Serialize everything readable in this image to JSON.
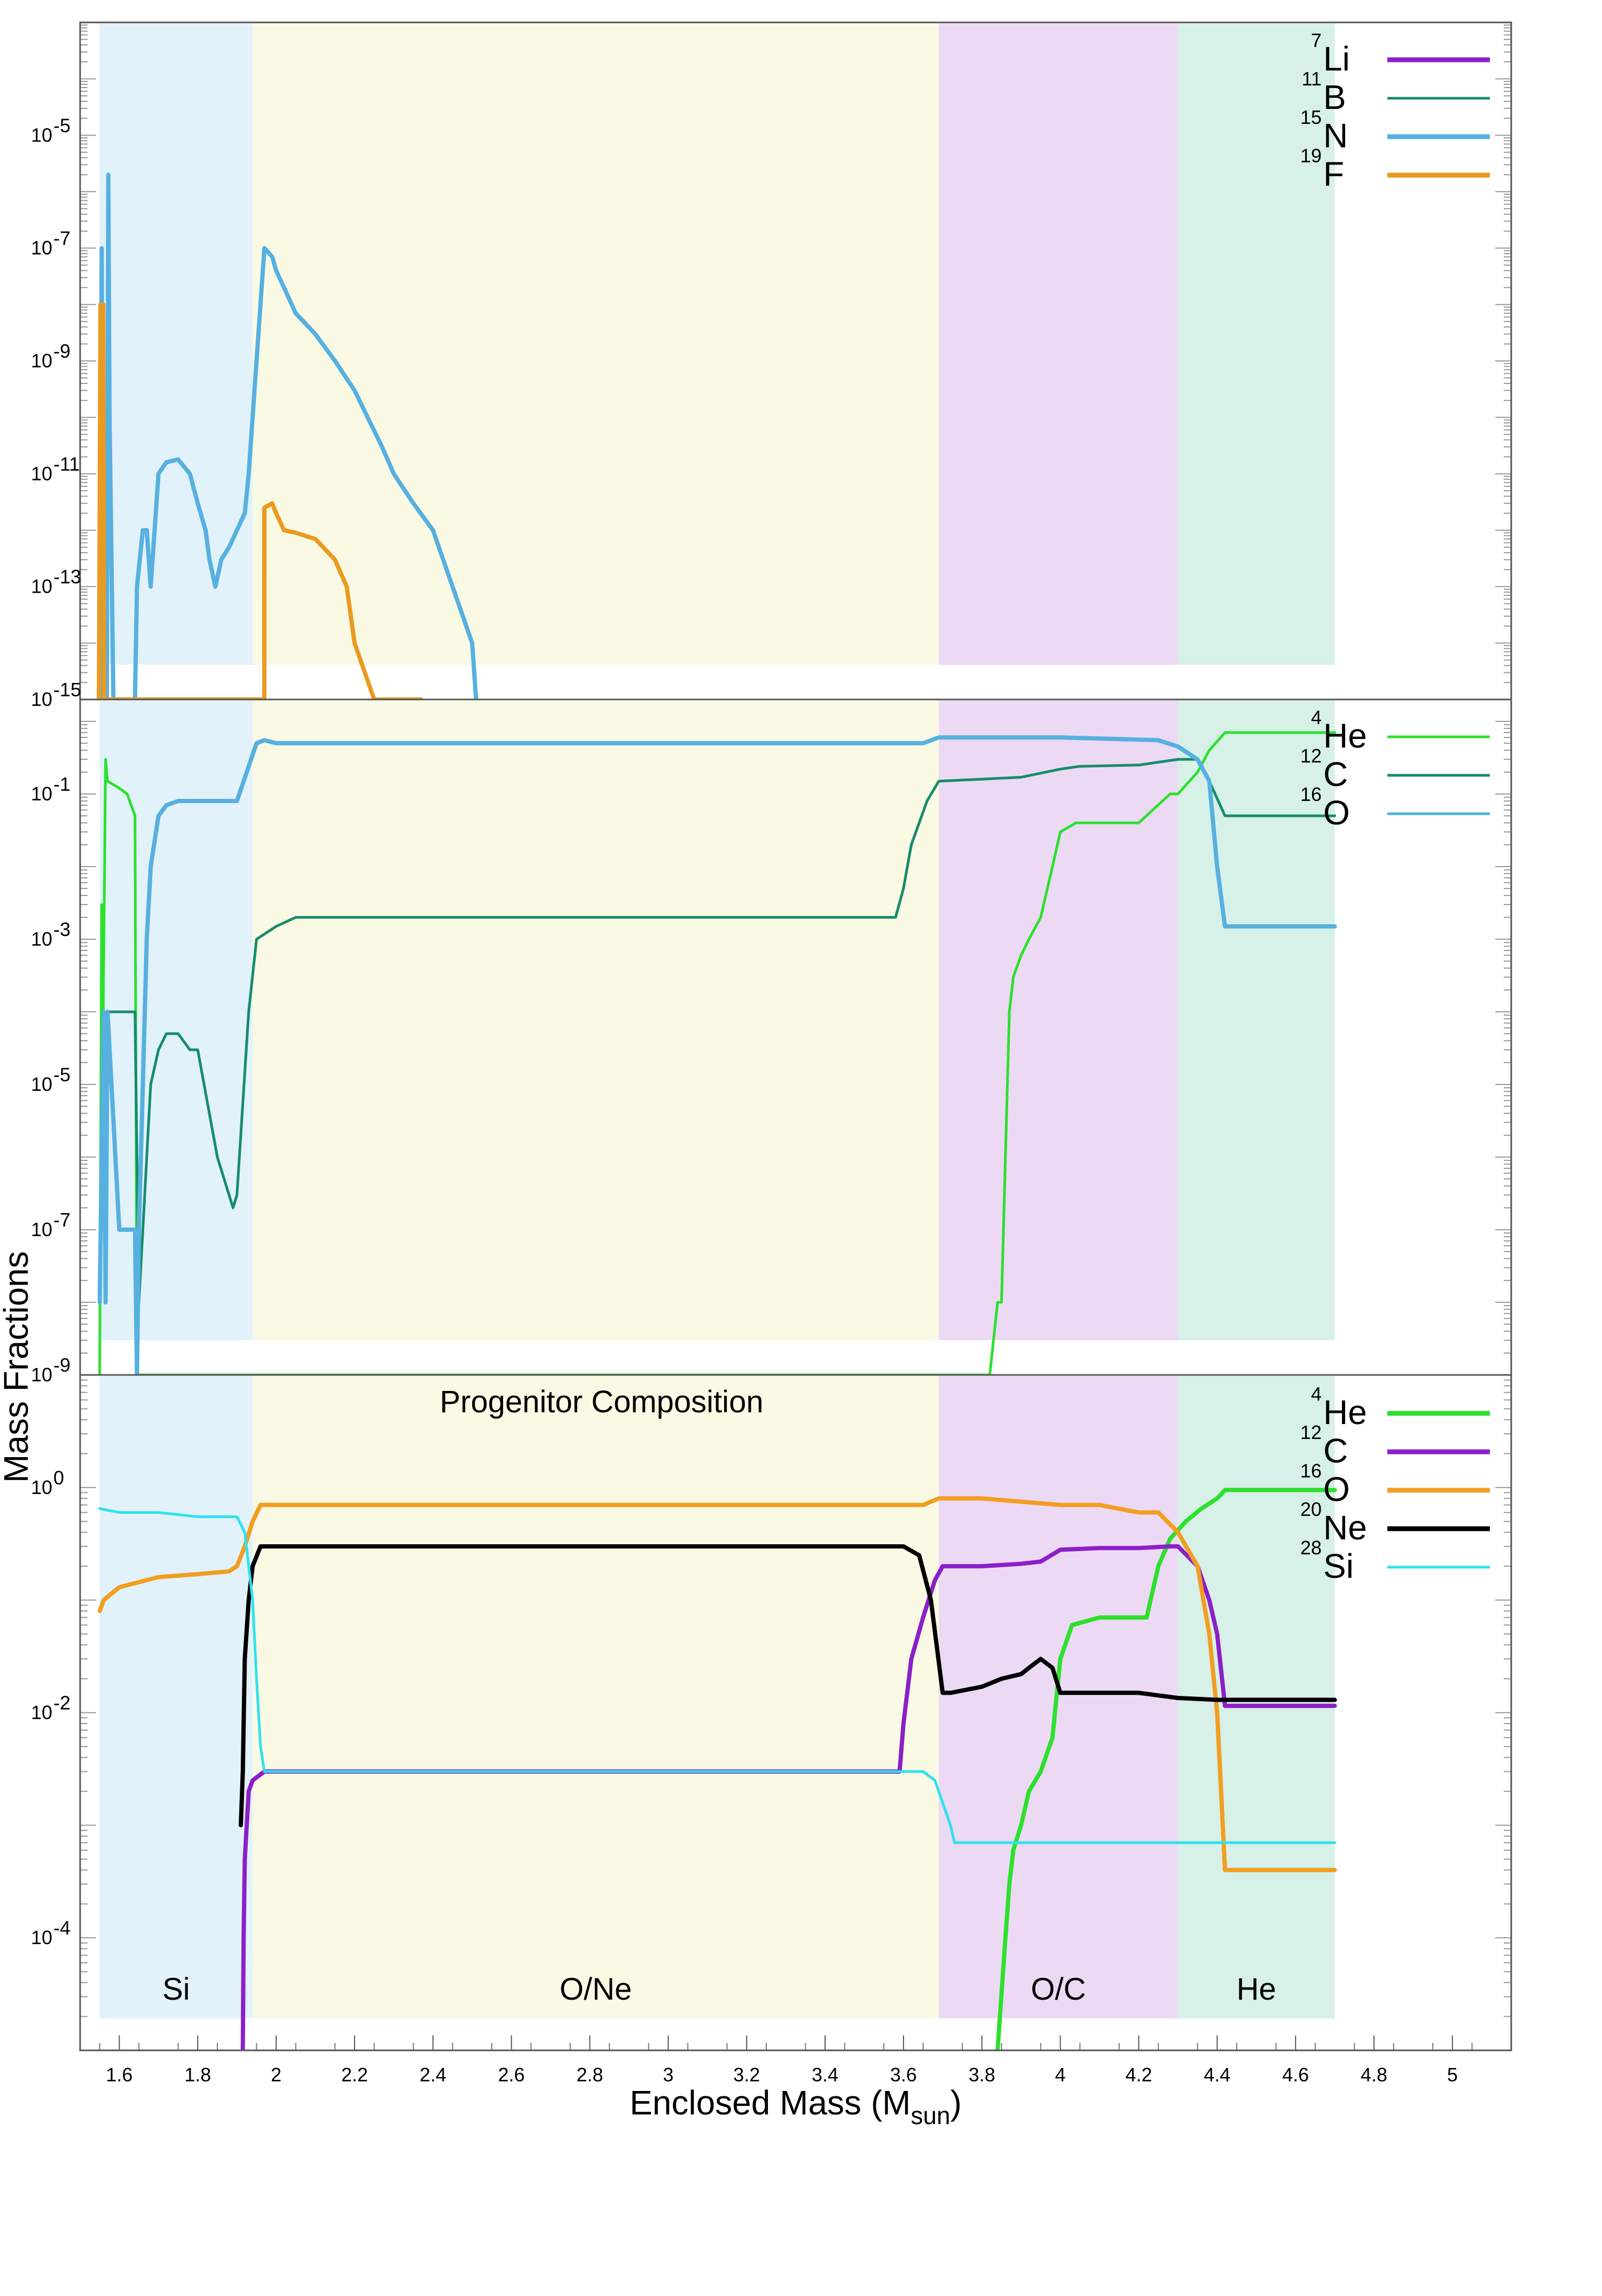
{
  "colors": {
    "region_si": "#e1f2fa",
    "region_one": "#faf9e4",
    "region_oc": "#ecdaf4",
    "region_he": "#d7f0e8",
    "frame": "#555555"
  },
  "chart_data": {
    "type": "line",
    "y_axis_label": "Mass Fractions",
    "x_axis": {
      "label_main": "Enclosed Mass (M",
      "label_sub": "sun",
      "label_close": ")",
      "range": [
        1.5,
        5.15
      ],
      "ticks": [
        1.6,
        1.8,
        2,
        2.2,
        2.4,
        2.6,
        2.8,
        3,
        3.2,
        3.4,
        3.6,
        3.8,
        4,
        4.2,
        4.4,
        4.6,
        4.8,
        5
      ],
      "tick_labels": [
        "1.6",
        "1.8",
        "2",
        "2.2",
        "2.4",
        "2.6",
        "2.8",
        "3",
        "3.2",
        "3.4",
        "3.6",
        "3.8",
        "4",
        "4.2",
        "4.4",
        "4.6",
        "4.8",
        "5"
      ]
    },
    "regions": [
      {
        "label": "Si",
        "x": [
          1.55,
          1.94
        ],
        "color": "#e1f2fa"
      },
      {
        "label": "O/Ne",
        "x": [
          1.94,
          3.69
        ],
        "color": "#faf9e4"
      },
      {
        "label": "O/C",
        "x": [
          3.69,
          4.3
        ],
        "color": "#ecdaf4"
      },
      {
        "label": "He",
        "x": [
          4.3,
          4.7
        ],
        "color": "#d7f0e8"
      }
    ],
    "panels": [
      {
        "scale": "log",
        "ylim": [
          1e-15,
          0.001
        ],
        "ytick_exponents": [
          -15,
          -13,
          -11,
          -9,
          -7,
          -5
        ],
        "series": [
          {
            "mass": "7",
            "element": "Li",
            "color": "#8c1fc8",
            "x": [
              1.555,
              1.556,
              1.557,
              1.559,
              1.56
            ],
            "y": [
              1e-15,
              1e-11,
              3e-10,
              1e-11,
              1e-15
            ]
          },
          {
            "mass": "11",
            "element": "B",
            "color": "#168c6c",
            "x": [
              1.555,
              1.558,
              1.56
            ],
            "y": [
              1e-15,
              1e-14,
              1e-15
            ]
          },
          {
            "mass": "15",
            "element": "N",
            "color": "#56b0e0",
            "x": [
              1.55,
              1.555,
              1.558,
              1.563,
              1.568,
              1.572,
              1.575,
              1.585,
              1.6,
              1.62,
              1.64,
              1.645,
              1.66,
              1.67,
              1.68,
              1.69,
              1.7,
              1.72,
              1.75,
              1.78,
              1.8,
              1.82,
              1.83,
              1.845,
              1.86,
              1.88,
              1.9,
              1.92,
              1.93,
              1.97,
              1.99,
              2.0,
              2.02,
              2.05,
              2.1,
              2.15,
              2.2,
              2.27,
              2.3,
              2.35,
              2.4,
              2.45,
              2.5,
              2.51
            ],
            "y": [
              1e-15,
              1e-07,
              1e-11,
              1e-15,
              1e-15,
              2e-06,
              1e-10,
              1e-15,
              1e-15,
              1e-15,
              1e-15,
              1e-13,
              1e-12,
              1e-12,
              1e-13,
              1e-12,
              1e-11,
              1.6e-11,
              1.8e-11,
              1e-11,
              3e-12,
              1e-12,
              3e-13,
              1e-13,
              3e-13,
              5e-13,
              1e-12,
              2e-12,
              1e-11,
              1e-07,
              7e-08,
              4e-08,
              2e-08,
              7e-09,
              3e-09,
              1e-09,
              3e-10,
              3e-11,
              1e-11,
              3e-12,
              1e-12,
              1e-13,
              1e-14,
              1e-15
            ]
          },
          {
            "mass": "19",
            "element": "F",
            "color": "#ea9a20",
            "x": [
              1.548,
              1.552,
              1.556,
              1.559,
              1.561,
              1.9699,
              1.97,
              1.99,
              2.0,
              2.02,
              2.05,
              2.1,
              2.15,
              2.18,
              2.2,
              2.25,
              2.3,
              2.35,
              2.37
            ],
            "y": [
              1e-15,
              1e-08,
              1e-11,
              1e-08,
              1e-15,
              1e-15,
              2.5e-12,
              3e-12,
              2e-12,
              1e-12,
              9e-13,
              7e-13,
              3e-13,
              1e-13,
              1e-14,
              1e-15,
              1e-15,
              1e-15,
              1e-15
            ]
          }
        ]
      },
      {
        "scale": "log",
        "ylim": [
          1e-09,
          2
        ],
        "ytick_exponents": [
          -9,
          -7,
          -5,
          -3,
          -1
        ],
        "series": [
          {
            "mass": "4",
            "element": "He",
            "color": "#2ee02e",
            "x": [
              1.55,
              1.555,
              1.557,
              1.559,
              1.565,
              1.57,
              1.6,
              1.62,
              1.64,
              1.645,
              1.65,
              3.82,
              3.84,
              3.85,
              3.86,
              3.87,
              3.88,
              3.9,
              3.92,
              3.95,
              3.98,
              4.0,
              4.04,
              4.1,
              4.2,
              4.28,
              4.3,
              4.35,
              4.38,
              4.42,
              4.5,
              4.6,
              4.7
            ],
            "y": [
              1e-09,
              0.003,
              1e-07,
              0.0001,
              0.3,
              0.15,
              0.12,
              0.1,
              0.05,
              1e-09,
              1e-09,
              1e-09,
              1e-08,
              1e-08,
              1e-06,
              0.0001,
              0.0003,
              0.0006,
              0.001,
              0.002,
              0.01,
              0.03,
              0.04,
              0.04,
              0.04,
              0.1,
              0.1,
              0.2,
              0.4,
              0.7,
              0.7,
              0.7,
              0.7
            ]
          },
          {
            "mass": "12",
            "element": "C",
            "color": "#168c6c",
            "x": [
              1.55,
              1.555,
              1.56,
              1.565,
              1.57,
              1.6,
              1.64,
              1.65,
              1.66,
              1.67,
              1.68,
              1.7,
              1.72,
              1.75,
              1.78,
              1.8,
              1.85,
              1.88,
              1.89,
              1.9,
              1.93,
              1.95,
              2.0,
              2.05,
              2.2,
              2.5,
              3.0,
              3.5,
              3.58,
              3.6,
              3.62,
              3.64,
              3.66,
              3.69,
              3.8,
              3.9,
              4.0,
              4.05,
              4.2,
              4.3,
              4.35,
              4.38,
              4.42,
              4.5,
              4.6,
              4.7
            ],
            "y": [
              1e-08,
              3e-06,
              0.0001,
              1e-08,
              0.0001,
              0.0001,
              0.0001,
              1e-08,
              1e-07,
              1e-06,
              1e-05,
              3e-05,
              5e-05,
              5e-05,
              3e-05,
              3e-05,
              1e-06,
              3e-07,
              2e-07,
              3e-07,
              0.0001,
              0.001,
              0.0015,
              0.002,
              0.002,
              0.002,
              0.002,
              0.002,
              0.002,
              0.005,
              0.02,
              0.04,
              0.08,
              0.15,
              0.16,
              0.17,
              0.22,
              0.24,
              0.25,
              0.3,
              0.3,
              0.15,
              0.05,
              0.05,
              0.05,
              0.05
            ]
          },
          {
            "mass": "16",
            "element": "O",
            "color": "#56b0e0",
            "x": [
              1.55,
              1.555,
              1.56,
              1.565,
              1.57,
              1.6,
              1.64,
              1.645,
              1.65,
              1.66,
              1.67,
              1.68,
              1.7,
              1.72,
              1.75,
              1.8,
              1.85,
              1.9,
              1.95,
              1.97,
              2.0,
              2.5,
              3.0,
              3.5,
              3.65,
              3.69,
              3.8,
              4.0,
              4.25,
              4.3,
              4.35,
              4.38,
              4.4,
              4.42,
              4.5,
              4.6,
              4.7
            ],
            "y": [
              1e-08,
              1e-06,
              0.0001,
              1e-08,
              0.0001,
              1e-07,
              1e-07,
              1e-09,
              1e-07,
              1e-05,
              0.001,
              0.01,
              0.05,
              0.07,
              0.08,
              0.08,
              0.08,
              0.08,
              0.5,
              0.55,
              0.5,
              0.5,
              0.5,
              0.5,
              0.5,
              0.6,
              0.6,
              0.6,
              0.55,
              0.45,
              0.3,
              0.15,
              0.01,
              0.0015,
              0.0015,
              0.0015,
              0.0015
            ]
          }
        ]
      },
      {
        "scale": "log",
        "ylim": [
          1e-05,
          10
        ],
        "ytick_exponents": [
          -4,
          -2,
          0
        ],
        "annotation": "Progenitor Composition",
        "series": [
          {
            "mass": "4",
            "element": "He",
            "color": "#2ee02e",
            "x": [
              3.84,
              3.86,
              3.87,
              3.88,
              3.9,
              3.92,
              3.95,
              3.98,
              4.0,
              4.03,
              4.1,
              4.2,
              4.22,
              4.25,
              4.28,
              4.32,
              4.36,
              4.4,
              4.42,
              4.5,
              4.6,
              4.7
            ],
            "y": [
              1e-05,
              0.0001,
              0.0003,
              0.0006,
              0.001,
              0.002,
              0.003,
              0.006,
              0.03,
              0.06,
              0.07,
              0.07,
              0.07,
              0.2,
              0.35,
              0.5,
              0.65,
              0.8,
              0.95,
              0.95,
              0.95,
              0.95
            ]
          },
          {
            "mass": "12",
            "element": "C",
            "color": "#8c1fc8",
            "x": [
              1.915,
              1.917,
              1.92,
              1.93,
              1.94,
              1.97,
              2.0,
              2.5,
              3.0,
              3.5,
              3.59,
              3.6,
              3.62,
              3.65,
              3.68,
              3.7,
              3.8,
              3.9,
              3.95,
              4.0,
              4.1,
              4.2,
              4.28,
              4.3,
              4.35,
              4.38,
              4.4,
              4.42,
              4.5,
              4.6,
              4.7
            ],
            "y": [
              1e-05,
              0.0001,
              0.0005,
              0.002,
              0.0025,
              0.003,
              0.003,
              0.003,
              0.003,
              0.003,
              0.003,
              0.008,
              0.03,
              0.07,
              0.15,
              0.2,
              0.2,
              0.21,
              0.22,
              0.28,
              0.29,
              0.29,
              0.3,
              0.3,
              0.2,
              0.1,
              0.05,
              0.0115,
              0.0115,
              0.0115,
              0.0115
            ]
          },
          {
            "mass": "16",
            "element": "O",
            "color": "#f29e20",
            "x": [
              1.55,
              1.56,
              1.6,
              1.7,
              1.8,
              1.88,
              1.9,
              1.92,
              1.94,
              1.96,
              2.0,
              2.5,
              3.0,
              3.5,
              3.65,
              3.69,
              3.8,
              4.0,
              4.1,
              4.2,
              4.25,
              4.3,
              4.35,
              4.38,
              4.4,
              4.41,
              4.42,
              4.5,
              4.6,
              4.7
            ],
            "y": [
              0.08,
              0.1,
              0.13,
              0.16,
              0.17,
              0.18,
              0.2,
              0.3,
              0.5,
              0.7,
              0.7,
              0.7,
              0.7,
              0.7,
              0.7,
              0.8,
              0.8,
              0.7,
              0.7,
              0.6,
              0.6,
              0.4,
              0.2,
              0.05,
              0.01,
              0.002,
              0.0004,
              0.0004,
              0.0004,
              0.0004
            ]
          },
          {
            "mass": "20",
            "element": "Ne",
            "color": "#000000",
            "x": [
              1.91,
              1.915,
              1.92,
              1.93,
              1.94,
              1.96,
              2.0,
              2.5,
              3.0,
              3.5,
              3.6,
              3.64,
              3.67,
              3.7,
              3.72,
              3.8,
              3.85,
              3.9,
              3.92,
              3.95,
              3.98,
              4.0,
              4.1,
              4.2,
              4.3,
              4.4,
              4.5,
              4.6,
              4.7
            ],
            "y": [
              0.001,
              0.003,
              0.03,
              0.1,
              0.2,
              0.3,
              0.3,
              0.3,
              0.3,
              0.3,
              0.3,
              0.25,
              0.1,
              0.015,
              0.015,
              0.017,
              0.02,
              0.022,
              0.025,
              0.03,
              0.025,
              0.015,
              0.015,
              0.015,
              0.0135,
              0.013,
              0.013,
              0.013,
              0.013
            ]
          },
          {
            "mass": "28",
            "element": "Si",
            "color": "#2ee2ee",
            "x": [
              1.55,
              1.6,
              1.7,
              1.8,
              1.9,
              1.92,
              1.94,
              1.95,
              1.96,
              1.97,
              2.0,
              2.5,
              3.0,
              3.5,
              3.65,
              3.68,
              3.72,
              3.73,
              4.0,
              4.3,
              4.5,
              4.7
            ],
            "y": [
              0.65,
              0.6,
              0.6,
              0.55,
              0.55,
              0.4,
              0.1,
              0.02,
              0.005,
              0.003,
              0.003,
              0.003,
              0.003,
              0.003,
              0.003,
              0.0025,
              0.001,
              0.0007,
              0.0007,
              0.0007,
              0.0007,
              0.0007
            ]
          }
        ]
      }
    ]
  }
}
